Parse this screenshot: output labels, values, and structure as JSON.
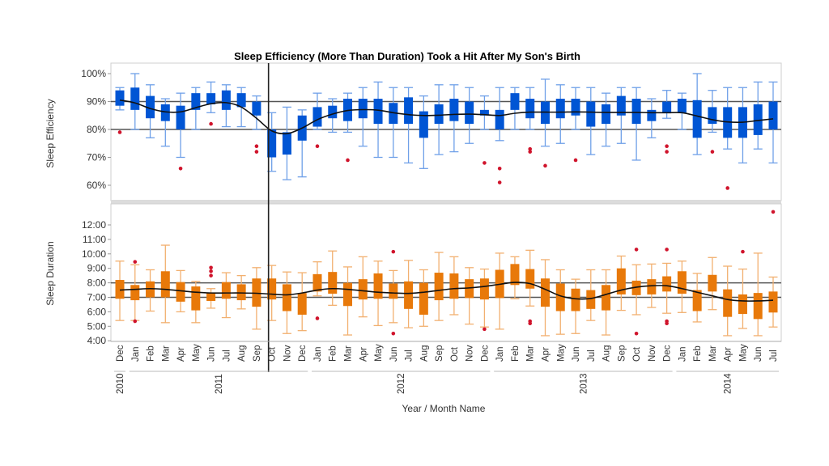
{
  "chart_data": [
    {
      "type": "box",
      "title": "Sleep Efficiency (More Than Duration) Took a Hit After My Son's Birth",
      "ylabel": "Sleep Efficiency",
      "xlabel": "Year / Month Name",
      "ylim": [
        55,
        103
      ],
      "yticks": [
        "100%",
        "90%",
        "80%",
        "70%",
        "60%"
      ],
      "ytick_values": [
        100,
        90,
        80,
        70,
        60
      ],
      "reference_lines": [
        90,
        80
      ],
      "event_marker": "2011-Oct",
      "box_color": "#0055D4",
      "whisker_color": "#6FA0E8",
      "outlier_color": "#D0142C",
      "boxes": [
        {
          "q1": 88.5,
          "q3": 94,
          "lo": 87,
          "hi": 95,
          "out": [
            79
          ]
        },
        {
          "q1": 87,
          "q3": 95,
          "lo": 80,
          "hi": 100,
          "out": []
        },
        {
          "q1": 84,
          "q3": 92,
          "lo": 77,
          "hi": 96,
          "out": []
        },
        {
          "q1": 83,
          "q3": 89,
          "lo": 74,
          "hi": 91,
          "out": []
        },
        {
          "q1": 80,
          "q3": 88.5,
          "lo": 70,
          "hi": 93,
          "out": [
            66
          ]
        },
        {
          "q1": 87,
          "q3": 93,
          "lo": 80,
          "hi": 95,
          "out": []
        },
        {
          "q1": 89,
          "q3": 93,
          "lo": 86,
          "hi": 97,
          "out": [
            82
          ]
        },
        {
          "q1": 87,
          "q3": 94,
          "lo": 81,
          "hi": 96,
          "out": []
        },
        {
          "q1": 88,
          "q3": 93,
          "lo": 81,
          "hi": 95,
          "out": []
        },
        {
          "q1": 85,
          "q3": 90,
          "lo": 80,
          "hi": 92,
          "out": [
            74,
            72
          ]
        },
        {
          "q1": 70,
          "q3": 80,
          "lo": 65,
          "hi": 86,
          "out": []
        },
        {
          "q1": 71,
          "q3": 79,
          "lo": 62,
          "hi": 88,
          "out": []
        },
        {
          "q1": 76,
          "q3": 85,
          "lo": 63,
          "hi": 87,
          "out": []
        },
        {
          "q1": 81,
          "q3": 88,
          "lo": 80,
          "hi": 93,
          "out": [
            74
          ]
        },
        {
          "q1": 84,
          "q3": 88.5,
          "lo": 79,
          "hi": 91,
          "out": []
        },
        {
          "q1": 83,
          "q3": 91,
          "lo": 79,
          "hi": 93,
          "out": [
            69
          ]
        },
        {
          "q1": 84,
          "q3": 91,
          "lo": 74,
          "hi": 95,
          "out": []
        },
        {
          "q1": 82,
          "q3": 91,
          "lo": 70,
          "hi": 97,
          "out": []
        },
        {
          "q1": 82,
          "q3": 89.5,
          "lo": 70,
          "hi": 95,
          "out": []
        },
        {
          "q1": 82,
          "q3": 91.5,
          "lo": 68,
          "hi": 95,
          "out": []
        },
        {
          "q1": 77,
          "q3": 86.5,
          "lo": 66,
          "hi": 92,
          "out": []
        },
        {
          "q1": 82,
          "q3": 89,
          "lo": 71,
          "hi": 96,
          "out": []
        },
        {
          "q1": 83,
          "q3": 91,
          "lo": 72,
          "hi": 96,
          "out": []
        },
        {
          "q1": 82,
          "q3": 90,
          "lo": 75,
          "hi": 95,
          "out": []
        },
        {
          "q1": 85,
          "q3": 87,
          "lo": 80,
          "hi": 92,
          "out": [
            68
          ]
        },
        {
          "q1": 80,
          "q3": 87,
          "lo": 76,
          "hi": 95,
          "out": [
            66,
            61
          ]
        },
        {
          "q1": 87,
          "q3": 93,
          "lo": 80,
          "hi": 95,
          "out": []
        },
        {
          "q1": 84,
          "q3": 91,
          "lo": 80,
          "hi": 95,
          "out": [
            73,
            72
          ]
        },
        {
          "q1": 82,
          "q3": 90,
          "lo": 74,
          "hi": 98,
          "out": [
            67
          ]
        },
        {
          "q1": 84,
          "q3": 91,
          "lo": 75,
          "hi": 96,
          "out": []
        },
        {
          "q1": 85,
          "q3": 91,
          "lo": 80,
          "hi": 95,
          "out": [
            69
          ]
        },
        {
          "q1": 81,
          "q3": 90,
          "lo": 71,
          "hi": 95,
          "out": []
        },
        {
          "q1": 82,
          "q3": 89,
          "lo": 74,
          "hi": 93,
          "out": []
        },
        {
          "q1": 85,
          "q3": 92,
          "lo": 75,
          "hi": 95,
          "out": []
        },
        {
          "q1": 82,
          "q3": 91,
          "lo": 69,
          "hi": 95,
          "out": []
        },
        {
          "q1": 83,
          "q3": 87,
          "lo": 77,
          "hi": 91,
          "out": []
        },
        {
          "q1": 86,
          "q3": 90,
          "lo": 84,
          "hi": 94,
          "out": [
            74,
            72
          ]
        },
        {
          "q1": 86,
          "q3": 91,
          "lo": 80,
          "hi": 93,
          "out": []
        },
        {
          "q1": 77,
          "q3": 90.5,
          "lo": 71,
          "hi": 100,
          "out": []
        },
        {
          "q1": 82,
          "q3": 88,
          "lo": 79,
          "hi": 94,
          "out": [
            72
          ]
        },
        {
          "q1": 77,
          "q3": 88,
          "lo": 73,
          "hi": 95,
          "out": [
            59
          ]
        },
        {
          "q1": 77,
          "q3": 88,
          "lo": 68,
          "hi": 95,
          "out": []
        },
        {
          "q1": 78,
          "q3": 89,
          "lo": 73,
          "hi": 97,
          "out": []
        },
        {
          "q1": 80,
          "q3": 90,
          "lo": 68,
          "hi": 97,
          "out": []
        }
      ],
      "smoother": [
        90.5,
        89.5,
        87.5,
        86.3,
        86.3,
        87.8,
        89.2,
        89.6,
        88,
        84,
        79.5,
        78.5,
        80.5,
        83.5,
        85.5,
        86.8,
        87.1,
        86.9,
        86,
        85.3,
        85,
        85.1,
        85.4,
        85.5,
        85.3,
        85,
        85.8,
        86.2,
        86.2,
        86.2,
        86.3,
        86.2,
        86.1,
        86.1,
        86.1,
        86,
        86,
        86,
        84.8,
        83.5,
        82.7,
        82.6,
        83.2,
        83.8
      ]
    },
    {
      "type": "box",
      "ylabel": "Sleep Duration",
      "ylim": [
        4,
        13.5
      ],
      "yticks": [
        "12:00",
        "11:00",
        "10:00",
        "9:00",
        "8:00",
        "7:00",
        "6:00",
        "5:00",
        "4:00"
      ],
      "ytick_values": [
        12,
        11,
        10,
        9,
        8,
        7,
        6,
        5,
        4
      ],
      "reference_lines": [
        8,
        7
      ],
      "box_color": "#E8790A",
      "whisker_color": "#F2B070",
      "outlier_color": "#D0142C",
      "boxes": [
        {
          "q1": 6.9,
          "q3": 8.2,
          "lo": 5.4,
          "hi": 9.5,
          "out": []
        },
        {
          "q1": 6.8,
          "q3": 7.85,
          "lo": 5.4,
          "hi": 9.25,
          "out": [
            9.45,
            5.35
          ]
        },
        {
          "q1": 7,
          "q3": 8.1,
          "lo": 6.05,
          "hi": 8.9,
          "out": []
        },
        {
          "q1": 7,
          "q3": 8.8,
          "lo": 5.25,
          "hi": 10.6,
          "out": []
        },
        {
          "q1": 6.7,
          "q3": 8.05,
          "lo": 6,
          "hi": 8.85,
          "out": []
        },
        {
          "q1": 6.1,
          "q3": 7.75,
          "lo": 5.25,
          "hi": 8.1,
          "out": []
        },
        {
          "q1": 6.75,
          "q3": 7.3,
          "lo": 6.25,
          "hi": 7.6,
          "out": [
            9.05,
            8.8,
            8.5
          ]
        },
        {
          "q1": 6.9,
          "q3": 8.05,
          "lo": 5.6,
          "hi": 8.7,
          "out": []
        },
        {
          "q1": 6.8,
          "q3": 7.9,
          "lo": 6.2,
          "hi": 8.5,
          "out": []
        },
        {
          "q1": 6.35,
          "q3": 8.3,
          "lo": 4.8,
          "hi": 9.05,
          "out": []
        },
        {
          "q1": 6.85,
          "q3": 8.3,
          "lo": 5.4,
          "hi": 9.2,
          "out": []
        },
        {
          "q1": 6.05,
          "q3": 7.9,
          "lo": 4.5,
          "hi": 8.75,
          "out": []
        },
        {
          "q1": 5.8,
          "q3": 7.3,
          "lo": 4.7,
          "hi": 8.7,
          "out": []
        },
        {
          "q1": 7.4,
          "q3": 8.6,
          "lo": 7.1,
          "hi": 9.45,
          "out": [
            5.55
          ]
        },
        {
          "q1": 7.25,
          "q3": 8.75,
          "lo": 6.45,
          "hi": 10.2,
          "out": []
        },
        {
          "q1": 6.4,
          "q3": 8,
          "lo": 4.4,
          "hi": 9.1,
          "out": []
        },
        {
          "q1": 6.85,
          "q3": 8.25,
          "lo": 5.65,
          "hi": 9.8,
          "out": []
        },
        {
          "q1": 6.9,
          "q3": 8.65,
          "lo": 5.05,
          "hi": 9.5,
          "out": []
        },
        {
          "q1": 6.9,
          "q3": 7.95,
          "lo": 5.25,
          "hi": 8.85,
          "out": [
            10.15,
            4.5
          ]
        },
        {
          "q1": 6.2,
          "q3": 8.1,
          "lo": 4.9,
          "hi": 9.55,
          "out": []
        },
        {
          "q1": 5.8,
          "q3": 8,
          "lo": 5,
          "hi": 8.9,
          "out": []
        },
        {
          "q1": 6.8,
          "q3": 8.7,
          "lo": 5.4,
          "hi": 10.1,
          "out": []
        },
        {
          "q1": 6.9,
          "q3": 8.65,
          "lo": 5.8,
          "hi": 9.8,
          "out": []
        },
        {
          "q1": 6.95,
          "q3": 8.25,
          "lo": 5.15,
          "hi": 9.05,
          "out": []
        },
        {
          "q1": 6.85,
          "q3": 8.3,
          "lo": 4.95,
          "hi": 8.95,
          "out": [
            4.8
          ]
        },
        {
          "q1": 6.95,
          "q3": 8.9,
          "lo": 4.8,
          "hi": 10.05,
          "out": []
        },
        {
          "q1": 7.85,
          "q3": 9.3,
          "lo": 6.9,
          "hi": 9.8,
          "out": []
        },
        {
          "q1": 7.6,
          "q3": 8.95,
          "lo": 6.4,
          "hi": 10.25,
          "out": [
            5.35,
            5.2
          ]
        },
        {
          "q1": 6.35,
          "q3": 8.3,
          "lo": 4.35,
          "hi": 9.6,
          "out": []
        },
        {
          "q1": 6.05,
          "q3": 7.95,
          "lo": 4.45,
          "hi": 8.9,
          "out": []
        },
        {
          "q1": 6.05,
          "q3": 7.6,
          "lo": 4.5,
          "hi": 8.25,
          "out": []
        },
        {
          "q1": 6.2,
          "q3": 7.5,
          "lo": 5.4,
          "hi": 8.9,
          "out": []
        },
        {
          "q1": 6.1,
          "q3": 7.85,
          "lo": 4.4,
          "hi": 8.9,
          "out": []
        },
        {
          "q1": 7.2,
          "q3": 9,
          "lo": 6.1,
          "hi": 9.85,
          "out": []
        },
        {
          "q1": 7.15,
          "q3": 8.15,
          "lo": 5.8,
          "hi": 9.25,
          "out": [
            10.3,
            4.5
          ]
        },
        {
          "q1": 7.2,
          "q3": 8.25,
          "lo": 6.3,
          "hi": 9.3,
          "out": []
        },
        {
          "q1": 7.4,
          "q3": 8.45,
          "lo": 5.9,
          "hi": 9.35,
          "out": [
            10.3,
            5.35,
            5.2
          ]
        },
        {
          "q1": 7.25,
          "q3": 8.8,
          "lo": 5.95,
          "hi": 9.5,
          "out": []
        },
        {
          "q1": 6.05,
          "q3": 7.5,
          "lo": 5.3,
          "hi": 8.65,
          "out": []
        },
        {
          "q1": 7.4,
          "q3": 8.55,
          "lo": 6.15,
          "hi": 9.75,
          "out": []
        },
        {
          "q1": 5.65,
          "q3": 7.55,
          "lo": 4.35,
          "hi": 9.15,
          "out": []
        },
        {
          "q1": 5.85,
          "q3": 7.2,
          "lo": 4.85,
          "hi": 8.95,
          "out": [
            10.15
          ]
        },
        {
          "q1": 5.5,
          "q3": 7.3,
          "lo": 4.35,
          "hi": 10.05,
          "out": []
        },
        {
          "q1": 5.95,
          "q3": 7.4,
          "lo": 4.95,
          "hi": 8.4,
          "out": [
            12.9
          ]
        }
      ],
      "smoother": [
        7.5,
        7.55,
        7.6,
        7.55,
        7.45,
        7.35,
        7.3,
        7.3,
        7.3,
        7.28,
        7.22,
        7.17,
        7.3,
        7.5,
        7.6,
        7.55,
        7.45,
        7.35,
        7.3,
        7.27,
        7.35,
        7.48,
        7.6,
        7.65,
        7.75,
        7.9,
        8.03,
        7.95,
        7.55,
        7.1,
        6.9,
        6.92,
        7.2,
        7.5,
        7.7,
        7.8,
        7.8,
        7.6,
        7.35,
        7.1,
        6.85,
        6.75,
        6.75,
        6.8
      ]
    }
  ],
  "x_axis": {
    "months": [
      "Dec",
      "Jan",
      "Feb",
      "Mar",
      "Apr",
      "May",
      "Jun",
      "Jul",
      "Aug",
      "Sep",
      "Oct",
      "Nov",
      "Dec",
      "Jan",
      "Feb",
      "Mar",
      "Apr",
      "May",
      "Jun",
      "Jul",
      "Aug",
      "Sep",
      "Oct",
      "Nov",
      "Dec",
      "Jan",
      "Feb",
      "Mar",
      "Apr",
      "May",
      "Jun",
      "Jul",
      "Aug",
      "Sep",
      "Oct",
      "Nov",
      "Dec",
      "Jan",
      "Feb",
      "Mar",
      "Apr",
      "May",
      "Jun",
      "Jul"
    ],
    "years": [
      {
        "label": "2010",
        "start": 0,
        "end": 0
      },
      {
        "label": "2011",
        "start": 1,
        "end": 12
      },
      {
        "label": "2012",
        "start": 13,
        "end": 24
      },
      {
        "label": "2013",
        "start": 25,
        "end": 36
      },
      {
        "label": "2014",
        "start": 37,
        "end": 43
      }
    ],
    "title": "Year / Month Name"
  }
}
